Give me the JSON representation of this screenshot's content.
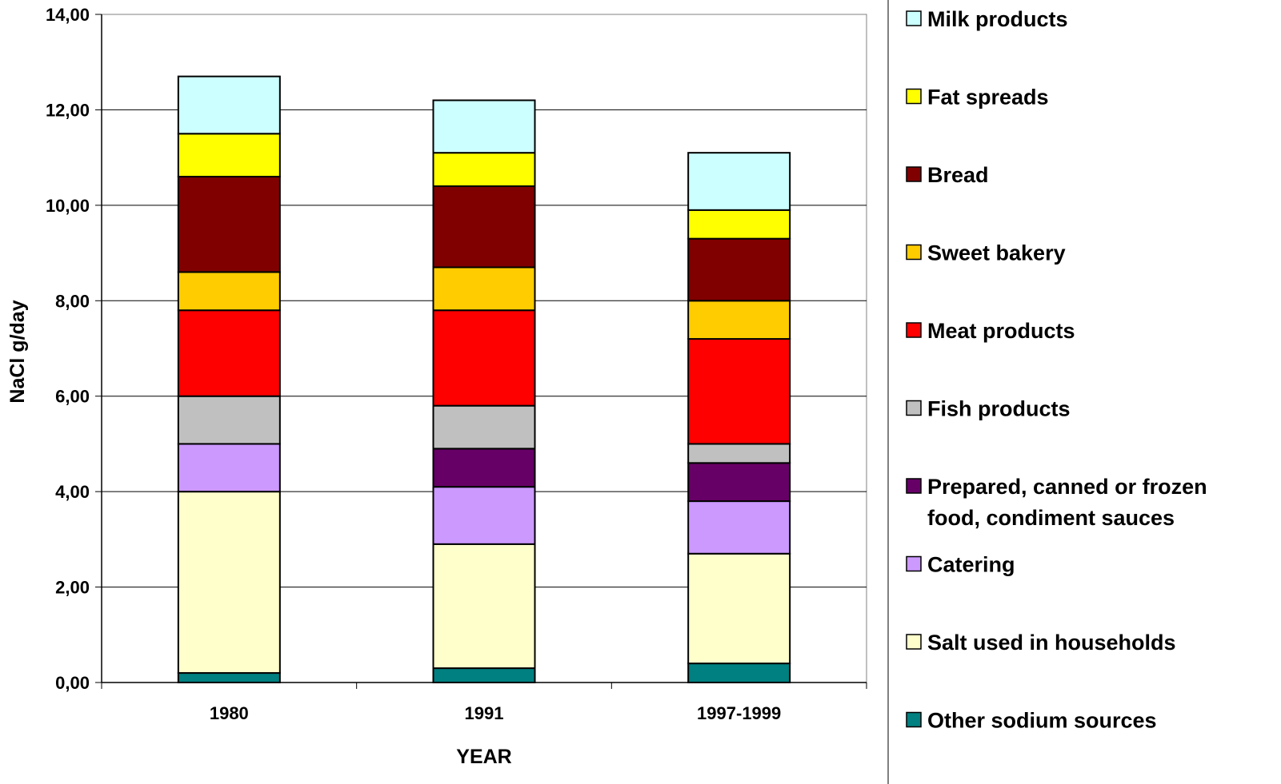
{
  "chart_data": {
    "type": "bar",
    "stacked": true,
    "categories": [
      "1980",
      "1991",
      "1997-1999"
    ],
    "xlabel": "YEAR",
    "ylabel": "NaCl g/day",
    "ylim": [
      0,
      14
    ],
    "yticks": [
      "0,00",
      "2,00",
      "4,00",
      "6,00",
      "8,00",
      "10,00",
      "12,00",
      "14,00"
    ],
    "grid": true,
    "legend_position": "right",
    "series": [
      {
        "name": "Other sodium sources",
        "color": "#008080",
        "values": [
          0.2,
          0.3,
          0.4
        ]
      },
      {
        "name": "Salt used in households",
        "color": "#ffffcc",
        "values": [
          3.8,
          2.6,
          2.3
        ]
      },
      {
        "name": "Catering",
        "color": "#cc99ff",
        "values": [
          1.0,
          1.2,
          1.1
        ]
      },
      {
        "name": "Prepared, canned or frozen food, condiment sauces",
        "color": "#660066",
        "values": [
          0.0,
          0.8,
          0.8
        ]
      },
      {
        "name": "Fish products",
        "color": "#c0c0c0",
        "values": [
          1.0,
          0.9,
          0.4
        ]
      },
      {
        "name": "Meat products",
        "color": "#ff0000",
        "values": [
          1.8,
          2.0,
          2.2
        ]
      },
      {
        "name": "Sweet bakery",
        "color": "#ffcc00",
        "values": [
          0.8,
          0.9,
          0.8
        ]
      },
      {
        "name": "Bread",
        "color": "#800000",
        "values": [
          2.0,
          1.7,
          1.3
        ]
      },
      {
        "name": "Fat spreads",
        "color": "#ffff00",
        "values": [
          0.9,
          0.7,
          0.6
        ]
      },
      {
        "name": "Milk products",
        "color": "#ccffff",
        "values": [
          1.2,
          1.1,
          1.2
        ]
      }
    ],
    "legend": [
      {
        "lines": [
          "Milk products"
        ],
        "color": "#ccffff"
      },
      {
        "lines": [
          "Fat spreads"
        ],
        "color": "#ffff00"
      },
      {
        "lines": [
          "Bread"
        ],
        "color": "#800000"
      },
      {
        "lines": [
          "Sweet bakery"
        ],
        "color": "#ffcc00"
      },
      {
        "lines": [
          "Meat products"
        ],
        "color": "#ff0000"
      },
      {
        "lines": [
          "Fish products"
        ],
        "color": "#c0c0c0"
      },
      {
        "lines": [
          "Prepared, canned or frozen",
          "food, condiment sauces"
        ],
        "color": "#660066"
      },
      {
        "lines": [
          "Catering"
        ],
        "color": "#cc99ff"
      },
      {
        "lines": [
          "Salt used in households"
        ],
        "color": "#ffffcc"
      },
      {
        "lines": [
          "Other sodium sources"
        ],
        "color": "#008080"
      }
    ]
  }
}
